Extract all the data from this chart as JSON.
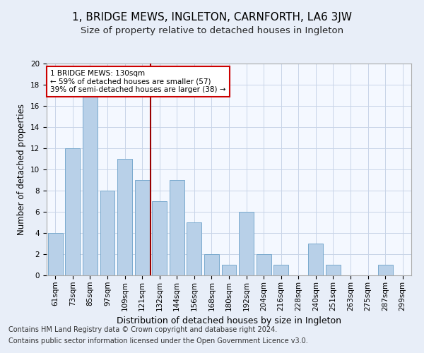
{
  "title": "1, BRIDGE MEWS, INGLETON, CARNFORTH, LA6 3JW",
  "subtitle": "Size of property relative to detached houses in Ingleton",
  "xlabel": "Distribution of detached houses by size in Ingleton",
  "ylabel": "Number of detached properties",
  "categories": [
    "61sqm",
    "73sqm",
    "85sqm",
    "97sqm",
    "109sqm",
    "121sqm",
    "132sqm",
    "144sqm",
    "156sqm",
    "168sqm",
    "180sqm",
    "192sqm",
    "204sqm",
    "216sqm",
    "228sqm",
    "240sqm",
    "251sqm",
    "263sqm",
    "275sqm",
    "287sqm",
    "299sqm"
  ],
  "values": [
    4,
    12,
    17,
    8,
    11,
    9,
    7,
    9,
    5,
    2,
    1,
    6,
    2,
    1,
    0,
    3,
    1,
    0,
    0,
    1,
    0
  ],
  "bar_color": "#b8d0e8",
  "bar_edge_color": "#7aaace",
  "vline_color": "#990000",
  "annotation_text": "1 BRIDGE MEWS: 130sqm\n← 59% of detached houses are smaller (57)\n39% of semi-detached houses are larger (38) →",
  "annotation_box_color": "#ffffff",
  "annotation_border_color": "#cc0000",
  "ylim": [
    0,
    20
  ],
  "yticks": [
    0,
    2,
    4,
    6,
    8,
    10,
    12,
    14,
    16,
    18,
    20
  ],
  "footer_line1": "Contains HM Land Registry data © Crown copyright and database right 2024.",
  "footer_line2": "Contains public sector information licensed under the Open Government Licence v3.0.",
  "background_color": "#e8eef8",
  "plot_bg_color": "#f4f8ff",
  "grid_color": "#c8d4e8",
  "title_fontsize": 11,
  "subtitle_fontsize": 9.5,
  "xlabel_fontsize": 9,
  "ylabel_fontsize": 8.5,
  "tick_fontsize": 7.5,
  "footer_fontsize": 7,
  "annotation_fontsize": 7.5
}
